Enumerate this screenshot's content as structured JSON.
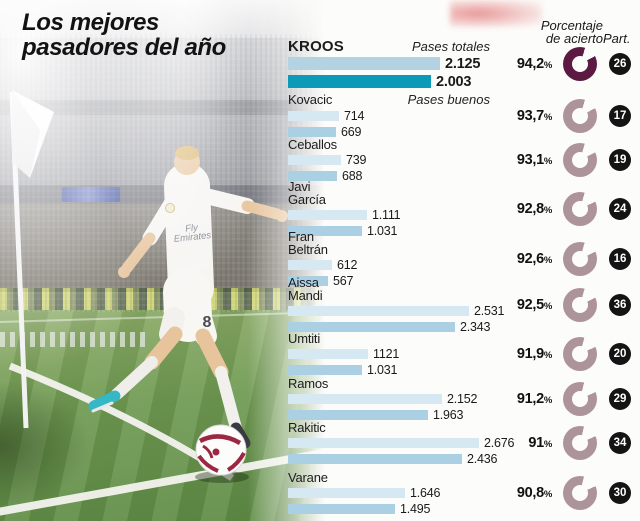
{
  "title": {
    "line1": "Los mejores",
    "line2": "pasadores del año"
  },
  "columns": {
    "percent_line1": "Porcentaje",
    "percent_line2": "de acierto",
    "part": "Part."
  },
  "legend": {
    "totales": "Pases totales",
    "buenos": "Pases buenos"
  },
  "strings": {
    "percent_sign": "%"
  },
  "photo": {
    "shirt_line1": "Fly",
    "shirt_line2": "Emirates",
    "shirt_number": "8"
  },
  "colors": {
    "bar_total": "#d6e8f1",
    "bar_buenos": "#abd0e3",
    "bar_total_highlight": "#b3d2e2",
    "bar_buenos_highlight": "#0c9ab8",
    "donut": "#ad939b",
    "donut_highlight": "#5c1a42",
    "part_badge": "#141414"
  },
  "chart_data": {
    "type": "bar",
    "orientation": "horizontal",
    "title": "Los mejores pasadores del año",
    "series_labels": [
      "Pases totales",
      "Pases buenos"
    ],
    "value_axis_max": 2676,
    "categories": [
      "Kroos",
      "Kovacic",
      "Ceballos",
      "Javi García",
      "Fran Beltrán",
      "Aissa Mandi",
      "Umtiti",
      "Ramos",
      "Rakitic",
      "Varane"
    ],
    "series": [
      {
        "name": "Pases totales",
        "values": [
          2125,
          714,
          739,
          1111,
          612,
          2531,
          1121,
          2152,
          2676,
          1646
        ]
      },
      {
        "name": "Pases buenos",
        "values": [
          2003,
          669,
          688,
          1031,
          567,
          2343,
          1031,
          1963,
          2436,
          1495
        ]
      },
      {
        "name": "Porcentaje de acierto",
        "values": [
          94.2,
          93.7,
          93.1,
          92.8,
          92.6,
          92.5,
          91.9,
          91.2,
          91,
          90.8
        ]
      },
      {
        "name": "Part.",
        "values": [
          26,
          17,
          19,
          24,
          16,
          36,
          20,
          29,
          34,
          30
        ]
      }
    ],
    "players": [
      {
        "name": "Kroos",
        "name_lines": [
          "KROOS"
        ],
        "totales": 2125,
        "totales_display": "2.125",
        "buenos": 2003,
        "buenos_display": "2.003",
        "accuracy_pct": 94.2,
        "accuracy_display": "94,2",
        "part": 26,
        "highlight": true
      },
      {
        "name": "Kovacic",
        "name_lines": [
          "Kovacic"
        ],
        "totales": 714,
        "totales_display": "714",
        "buenos": 669,
        "buenos_display": "669",
        "accuracy_pct": 93.7,
        "accuracy_display": "93,7",
        "part": 17,
        "highlight": false
      },
      {
        "name": "Ceballos",
        "name_lines": [
          "Ceballos"
        ],
        "totales": 739,
        "totales_display": "739",
        "buenos": 688,
        "buenos_display": "688",
        "accuracy_pct": 93.1,
        "accuracy_display": "93,1",
        "part": 19,
        "highlight": false
      },
      {
        "name": "Javi García",
        "name_lines": [
          "Javi",
          "García"
        ],
        "totales": 1111,
        "totales_display": "1.111",
        "buenos": 1031,
        "buenos_display": "1.031",
        "accuracy_pct": 92.8,
        "accuracy_display": "92,8",
        "part": 24,
        "highlight": false
      },
      {
        "name": "Fran Beltrán",
        "name_lines": [
          "Fran",
          "Beltrán"
        ],
        "totales": 612,
        "totales_display": "612",
        "buenos": 567,
        "buenos_display": "567",
        "accuracy_pct": 92.6,
        "accuracy_display": "92,6",
        "part": 16,
        "highlight": false
      },
      {
        "name": "Aissa Mandi",
        "name_lines": [
          "Aissa",
          "Mandi"
        ],
        "totales": 2531,
        "totales_display": "2.531",
        "buenos": 2343,
        "buenos_display": "2.343",
        "accuracy_pct": 92.5,
        "accuracy_display": "92,5",
        "part": 36,
        "highlight": false
      },
      {
        "name": "Umtiti",
        "name_lines": [
          "Umtiti"
        ],
        "totales": 1121,
        "totales_display": "1121",
        "buenos": 1031,
        "buenos_display": "1.031",
        "accuracy_pct": 91.9,
        "accuracy_display": "91,9",
        "part": 20,
        "highlight": false
      },
      {
        "name": "Ramos",
        "name_lines": [
          "Ramos"
        ],
        "totales": 2152,
        "totales_display": "2.152",
        "buenos": 1963,
        "buenos_display": "1.963",
        "accuracy_pct": 91.2,
        "accuracy_display": "91,2",
        "part": 29,
        "highlight": false
      },
      {
        "name": "Rakitic",
        "name_lines": [
          "Rakitic"
        ],
        "totales": 2676,
        "totales_display": "2.676",
        "buenos": 2436,
        "buenos_display": "2.436",
        "accuracy_pct": 91,
        "accuracy_display": "91",
        "part": 34,
        "highlight": false
      },
      {
        "name": "Varane",
        "name_lines": [
          "Varane"
        ],
        "totales": 1646,
        "totales_display": "1.646",
        "buenos": 1495,
        "buenos_display": "1.495",
        "accuracy_pct": 90.8,
        "accuracy_display": "90,8",
        "part": 30,
        "highlight": false
      }
    ]
  }
}
